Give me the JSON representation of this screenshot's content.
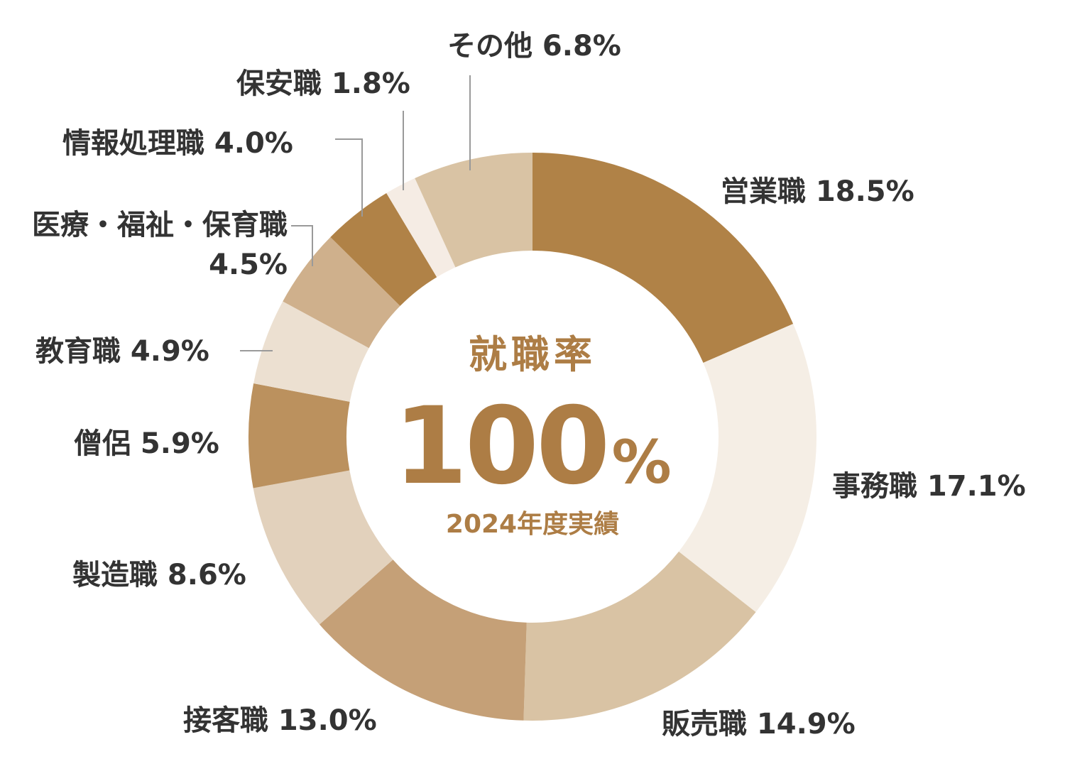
{
  "chart_data": {
    "type": "pie",
    "donut": true,
    "legend": "none",
    "categories": [
      "営業職",
      "事務職",
      "販売職",
      "接客職",
      "製造職",
      "僧侶",
      "教育職",
      "医療・福祉・保育職",
      "情報処理職",
      "保安職",
      "その他"
    ],
    "values": [
      18.5,
      17.1,
      14.9,
      13.0,
      8.6,
      5.9,
      4.9,
      4.5,
      4.0,
      1.8,
      6.8
    ],
    "labels": [
      [
        "営業職 18.5%"
      ],
      [
        "事務職 17.1%"
      ],
      [
        "販売職 14.9%"
      ],
      [
        "接客職 13.0%"
      ],
      [
        "製造職 8.6%"
      ],
      [
        "僧侶 5.9%"
      ],
      [
        "教育職 4.9%"
      ],
      [
        "医療・福祉・保育職",
        "4.5%"
      ],
      [
        "情報処理職 4.0%"
      ],
      [
        "保安職 1.8%"
      ],
      [
        "その他 6.8%"
      ]
    ],
    "colors": [
      "#b08247",
      "#f5eee5",
      "#d9c3a4",
      "#c5a077",
      "#e2d1bc",
      "#bb915e",
      "#ece0d1",
      "#cfb08c",
      "#b08247",
      "#f5ece4",
      "#d9c3a4"
    ],
    "center": {
      "title": "就職率",
      "value": "100",
      "unit": "%",
      "subtitle": "2024年度実績",
      "color": "#ad7d45"
    }
  }
}
